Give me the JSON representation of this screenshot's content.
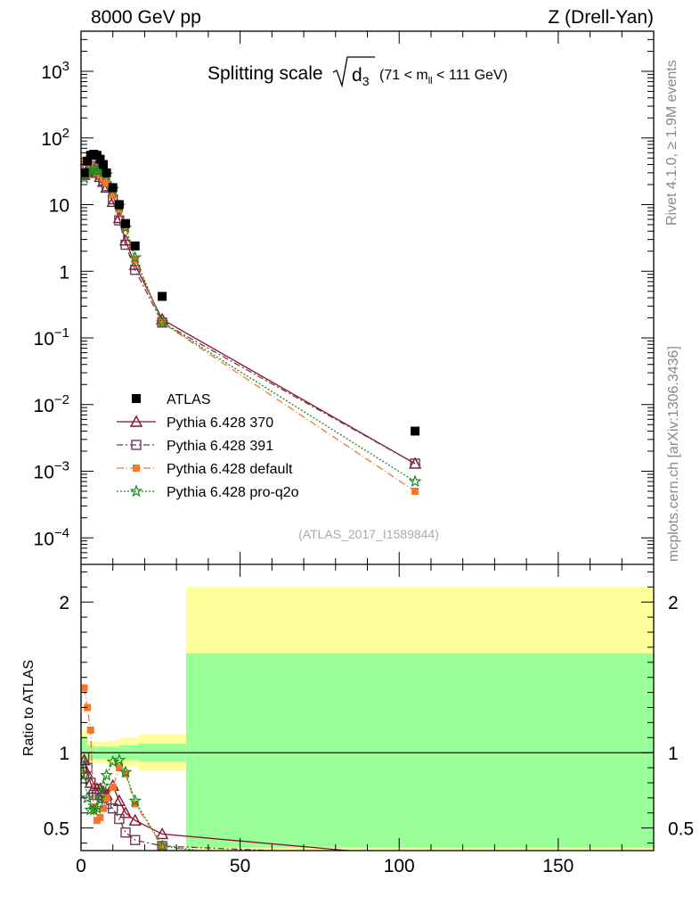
{
  "header": {
    "left": "8000 GeV pp",
    "right": "Z (Drell-Yan)"
  },
  "side": {
    "top": "Rivet 4.1.0, ≥ 1.9M events",
    "bottom": "mcplots.cern.ch [arXiv:1306.3436]"
  },
  "chart_data": {
    "type": "scatter",
    "title_main": "Splitting scale",
    "title_sym": "d",
    "title_sub": "3",
    "title_range_pre": "(71 < m",
    "title_range_sub": "ll",
    "title_range_post": " < 111 GeV)",
    "watermark": "(ATLAS_2017_I1589844)",
    "ratio_ylabel": "Ratio to ATLAS",
    "main": {
      "yscale": "log",
      "ylim": [
        4e-05,
        4000
      ],
      "yticks": [
        {
          "v": 1000,
          "label": "10",
          "exp": "3"
        },
        {
          "v": 100,
          "label": "10",
          "exp": "2"
        },
        {
          "v": 10,
          "label": "10",
          "exp": ""
        },
        {
          "v": 1,
          "label": "1",
          "exp": ""
        },
        {
          "v": 0.1,
          "label": "10",
          "exp": "−1"
        },
        {
          "v": 0.01,
          "label": "10",
          "exp": "−2"
        },
        {
          "v": 0.001,
          "label": "10",
          "exp": "−3"
        },
        {
          "v": 0.0001,
          "label": "10",
          "exp": "−4"
        }
      ]
    },
    "ratio": {
      "ylim": [
        0.35,
        2.25
      ],
      "yticks": [
        {
          "v": 0.5,
          "label": "0.5"
        },
        {
          "v": 1,
          "label": "1"
        },
        {
          "v": 2,
          "label": "2"
        }
      ]
    },
    "xlim": [
      0,
      180
    ],
    "xticks": [
      {
        "v": 0,
        "label": "0"
      },
      {
        "v": 50,
        "label": "50"
      },
      {
        "v": 100,
        "label": "100"
      },
      {
        "v": 150,
        "label": "150"
      }
    ],
    "data": {
      "name": "ATLAS",
      "x": [
        1,
        2,
        3,
        4,
        5,
        6,
        7,
        8,
        10,
        12,
        14,
        17,
        25.5,
        105
      ],
      "y": [
        30,
        45,
        55,
        57,
        55,
        48,
        40,
        30,
        18,
        10,
        5.2,
        2.4,
        0.42,
        0.004
      ]
    },
    "bands": [
      {
        "x0": 0,
        "x1": 2,
        "inner": [
          0.9,
          1.1
        ],
        "outer": [
          0.85,
          1.15
        ]
      },
      {
        "x0": 2,
        "x1": 4,
        "inner": [
          0.95,
          1.05
        ],
        "outer": [
          0.92,
          1.08
        ]
      },
      {
        "x0": 4,
        "x1": 8,
        "inner": [
          0.96,
          1.04
        ],
        "outer": [
          0.93,
          1.07
        ]
      },
      {
        "x0": 8,
        "x1": 12,
        "inner": [
          0.96,
          1.04
        ],
        "outer": [
          0.92,
          1.08
        ]
      },
      {
        "x0": 12,
        "x1": 18,
        "inner": [
          0.95,
          1.05
        ],
        "outer": [
          0.91,
          1.1
        ]
      },
      {
        "x0": 18,
        "x1": 33,
        "inner": [
          0.94,
          1.06
        ],
        "outer": [
          0.88,
          1.12
        ]
      },
      {
        "x0": 33,
        "x1": 180,
        "inner": [
          0.37,
          1.66
        ],
        "outer": [
          0.2,
          2.1
        ]
      }
    ],
    "series": [
      {
        "name": "Pythia 6.428 370",
        "color": "#8a1028",
        "dash": "",
        "marker": "triangle",
        "x": [
          1,
          2,
          3,
          4,
          5,
          6,
          7,
          8,
          10,
          12,
          14,
          17,
          25.5,
          105
        ],
        "y": [
          28,
          34,
          34,
          32,
          30,
          26,
          22,
          18,
          11,
          6.3,
          2.9,
          1.25,
          0.19,
          0.0013
        ],
        "ratio": [
          0.95,
          0.86,
          0.8,
          0.76,
          0.76,
          0.76,
          0.74,
          0.72,
          0.78,
          0.68,
          0.6,
          0.55,
          0.46,
          0.31
        ]
      },
      {
        "name": "Pythia 6.428 391",
        "color": "#6e3a5a",
        "dash": "7,3,2,3",
        "marker": "square_open",
        "x": [
          1,
          2,
          3,
          4,
          5,
          6,
          7,
          8,
          10,
          12,
          14,
          17,
          25.5,
          105
        ],
        "y": [
          29,
          36,
          38,
          36,
          33,
          28,
          23,
          19,
          12,
          5.8,
          2.5,
          1.05,
          0.17,
          0.0013
        ],
        "ratio": [
          0.97,
          0.9,
          0.8,
          0.72,
          0.72,
          0.72,
          0.7,
          0.66,
          0.63,
          0.56,
          0.47,
          0.42,
          0.38,
          0.31
        ]
      },
      {
        "name": "Pythia 6.428 default",
        "color": "#f5772a",
        "dash": "8,3,1,3",
        "marker": "square_filled",
        "x": [
          1,
          2,
          3,
          4,
          5,
          6,
          7,
          8,
          10,
          12,
          14,
          17,
          25.5,
          105
        ],
        "y": [
          43,
          45,
          38,
          34,
          31,
          28,
          25,
          21,
          14,
          8.5,
          4.6,
          1.5,
          0.17,
          0.0005
        ],
        "ratio": [
          1.43,
          1.3,
          1.15,
          0.64,
          0.55,
          0.57,
          0.63,
          0.7,
          0.77,
          0.9,
          0.86,
          0.66,
          0.38,
          0.13
        ]
      },
      {
        "name": "Pythia 6.428 pro-q2o",
        "color": "#1a8a1a",
        "dash": "2,2",
        "marker": "star",
        "x": [
          1,
          2,
          3,
          4,
          5,
          6,
          7,
          8,
          10,
          12,
          14,
          17,
          25.5,
          105
        ],
        "y": [
          25,
          30,
          32,
          33,
          33,
          32,
          31,
          28,
          17,
          9.5,
          4.5,
          1.6,
          0.17,
          0.0007
        ],
        "ratio": [
          0.85,
          0.7,
          0.62,
          0.62,
          0.63,
          0.7,
          0.78,
          0.85,
          0.94,
          0.95,
          0.87,
          0.68,
          0.38,
          0.18
        ]
      }
    ]
  }
}
